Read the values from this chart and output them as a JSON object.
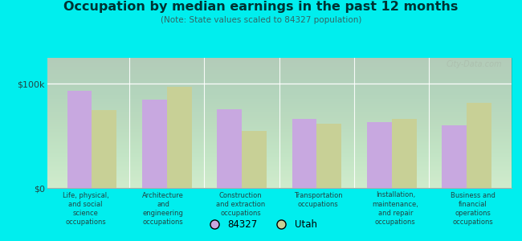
{
  "title": "Occupation by median earnings in the past 12 months",
  "subtitle": "(Note: State values scaled to 84327 population)",
  "categories": [
    "Life, physical,\nand social\nscience\noccupations",
    "Architecture\nand\nengineering\noccupations",
    "Construction\nand extraction\noccupations",
    "Transportation\noccupations",
    "Installation,\nmaintenance,\nand repair\noccupations",
    "Business and\nfinancial\noperations\noccupations"
  ],
  "values_84327": [
    93000,
    85000,
    76000,
    66000,
    63000,
    60000
  ],
  "values_utah": [
    75000,
    97000,
    55000,
    62000,
    66000,
    82000
  ],
  "color_84327": "#c8a8e0",
  "color_utah": "#c8d096",
  "ytick_label": "$100k",
  "ytick_value": 100000,
  "y0_label": "$0",
  "ylim": [
    0,
    125000
  ],
  "chart_bg_top": "#f5fdf0",
  "chart_bg_bottom": "#e8f5e0",
  "outer_background": "#00eeee",
  "title_color": "#003333",
  "subtitle_color": "#336666",
  "label_color": "#224444",
  "legend_labels": [
    "84327",
    "Utah"
  ],
  "watermark": "City-Data.com"
}
